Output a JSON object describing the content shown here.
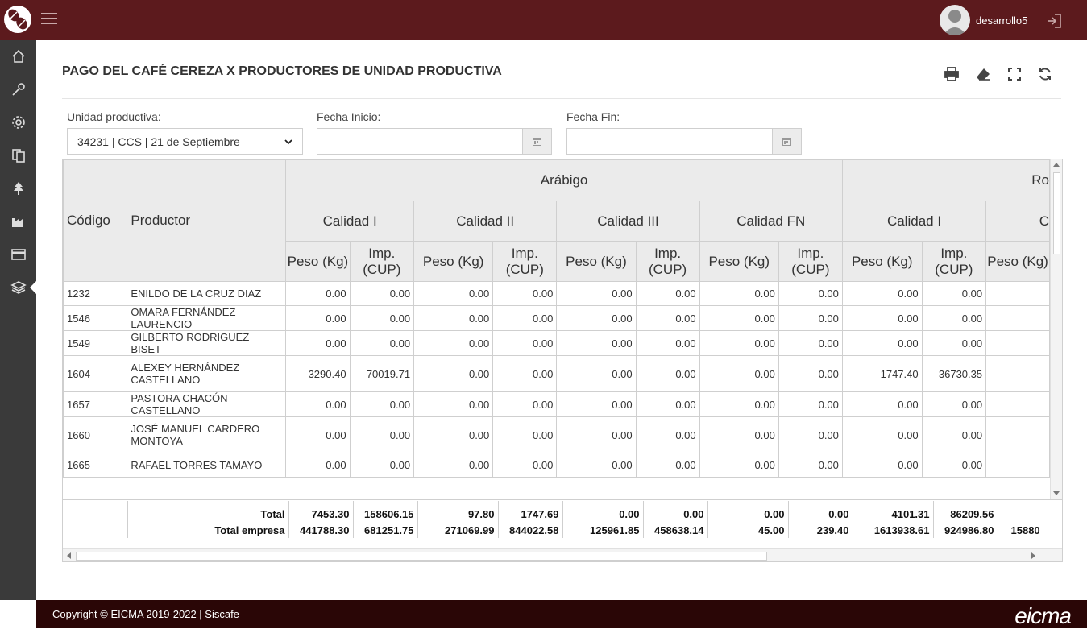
{
  "header": {
    "username": "desarrollo5"
  },
  "page": {
    "title": "PAGO DEL CAFÉ CEREZA X PRODUCTORES DE UNIDAD PRODUCTIVA"
  },
  "filters": {
    "unidad_label": "Unidad productiva:",
    "unidad_value": "34231 | CCS | 21 de Septiembre",
    "fecha_inicio_label": "Fecha Inicio:",
    "fecha_inicio_value": "",
    "fecha_fin_label": "Fecha Fin:",
    "fecha_fin_value": ""
  },
  "table": {
    "col_codigo": "Código",
    "col_productor": "Productor",
    "group_arabigo": "Arábigo",
    "group_robusta": "Ro",
    "cal1": "Calidad I",
    "cal2": "Calidad II",
    "cal3": "Calidad III",
    "calfn": "Calidad FN",
    "cal_r1": "Calidad I",
    "cal_r2": "C",
    "peso": "Peso (Kg)",
    "imp": "Imp. (CUP)",
    "peso_cut": "Peso (Kg)",
    "rows": [
      {
        "codigo": "1232",
        "productor": "ENILDO DE LA CRUZ DIAZ",
        "vals": [
          "0.00",
          "0.00",
          "0.00",
          "0.00",
          "0.00",
          "0.00",
          "0.00",
          "0.00",
          "0.00",
          "0.00"
        ]
      },
      {
        "codigo": "1546",
        "productor": "OMARA FERNÁNDEZ LAURENCIO",
        "vals": [
          "0.00",
          "0.00",
          "0.00",
          "0.00",
          "0.00",
          "0.00",
          "0.00",
          "0.00",
          "0.00",
          "0.00"
        ]
      },
      {
        "codigo": "1549",
        "productor": "GILBERTO RODRIGUEZ BISET",
        "vals": [
          "0.00",
          "0.00",
          "0.00",
          "0.00",
          "0.00",
          "0.00",
          "0.00",
          "0.00",
          "0.00",
          "0.00"
        ]
      },
      {
        "codigo": "1604",
        "productor": "ALEXEY HERNÁNDEZ CASTELLANO",
        "vals": [
          "3290.40",
          "70019.71",
          "0.00",
          "0.00",
          "0.00",
          "0.00",
          "0.00",
          "0.00",
          "1747.40",
          "36730.35"
        ]
      },
      {
        "codigo": "1657",
        "productor": "PASTORA CHACÓN CASTELLANO",
        "vals": [
          "0.00",
          "0.00",
          "0.00",
          "0.00",
          "0.00",
          "0.00",
          "0.00",
          "0.00",
          "0.00",
          "0.00"
        ]
      },
      {
        "codigo": "1660",
        "productor": "JOSÉ MANUEL CARDERO MONTOYA",
        "vals": [
          "0.00",
          "0.00",
          "0.00",
          "0.00",
          "0.00",
          "0.00",
          "0.00",
          "0.00",
          "0.00",
          "0.00"
        ]
      },
      {
        "codigo": "1665",
        "productor": "RAFAEL TORRES TAMAYO",
        "vals": [
          "0.00",
          "0.00",
          "0.00",
          "0.00",
          "0.00",
          "0.00",
          "0.00",
          "0.00",
          "0.00",
          "0.00"
        ]
      }
    ],
    "totals": [
      {
        "label": "Total",
        "vals": [
          "7453.30",
          "158606.15",
          "97.80",
          "1747.69",
          "0.00",
          "0.00",
          "0.00",
          "0.00",
          "4101.31",
          "86209.56",
          ""
        ]
      },
      {
        "label": "Total empresa",
        "vals": [
          "441788.30",
          "681251.75",
          "271069.99",
          "844022.58",
          "125961.85",
          "458638.14",
          "45.00",
          "239.40",
          "1613938.61",
          "924986.80",
          "15880"
        ]
      }
    ]
  },
  "footer": {
    "copyright": "Copyright © EICMA 2019-2022 | Siscafe",
    "brand": "eicma"
  }
}
